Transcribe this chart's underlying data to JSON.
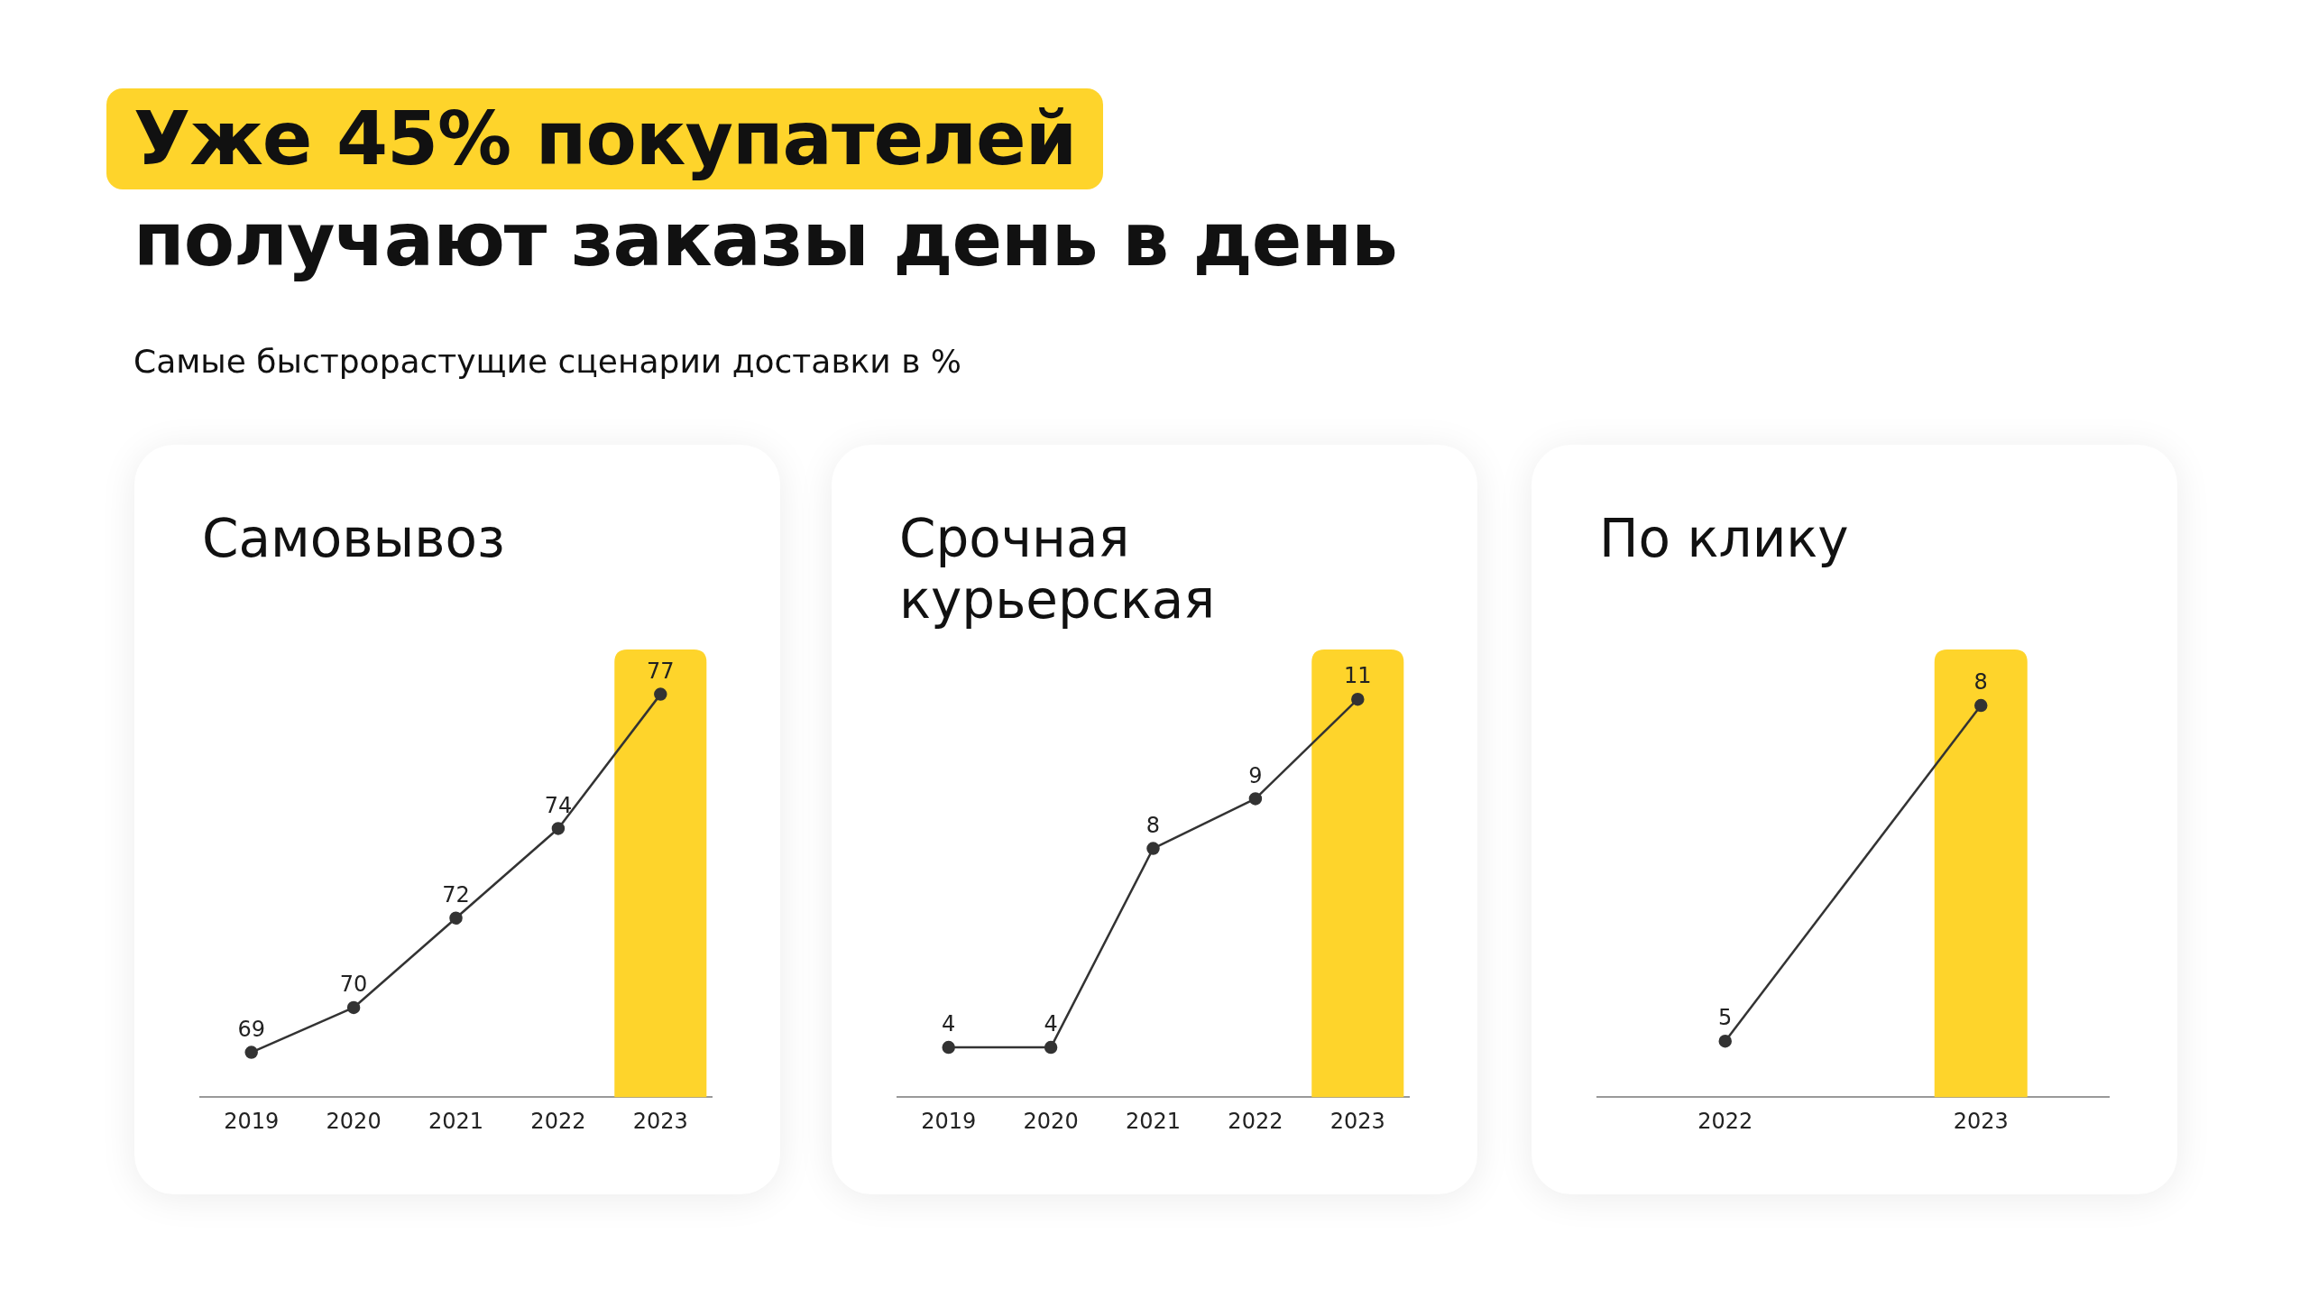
{
  "chart_data": [
    {
      "type": "other",
      "title": "Уже 45% покупателей\nполучают заказы день в день",
      "subtitle": "Самые быстрорастущие сценарии доставки в %"
    },
    {
      "type": "line",
      "title": "Самовывоз",
      "categories": [
        "2019",
        "2020",
        "2021",
        "2022",
        "2023"
      ],
      "values": [
        69,
        70,
        72,
        74,
        77
      ],
      "color": "#333333",
      "marker": "circle",
      "data_labels": true,
      "tick_labels": "x",
      "bands": [
        {
          "axis": "x",
          "from": "2023",
          "to": "2023",
          "color": "#fed42b"
        }
      ]
    },
    {
      "type": "line",
      "title": "Срочная курьерская",
      "categories": [
        "2019",
        "2020",
        "2021",
        "2022",
        "2023"
      ],
      "values": [
        4,
        4,
        8,
        9,
        11
      ],
      "color": "#333333",
      "marker": "circle",
      "data_labels": true,
      "tick_labels": "x",
      "bands": [
        {
          "axis": "x",
          "from": "2023",
          "to": "2023",
          "color": "#fed42b"
        }
      ]
    },
    {
      "type": "line",
      "title": "По клику",
      "categories": [
        "2022",
        "2023"
      ],
      "values": [
        5,
        8
      ],
      "color": "#333333",
      "marker": "circle",
      "data_labels": true,
      "tick_labels": "x",
      "bands": [
        {
          "axis": "x",
          "from": "2023",
          "to": "2023",
          "color": "#fed42b"
        }
      ]
    }
  ]
}
